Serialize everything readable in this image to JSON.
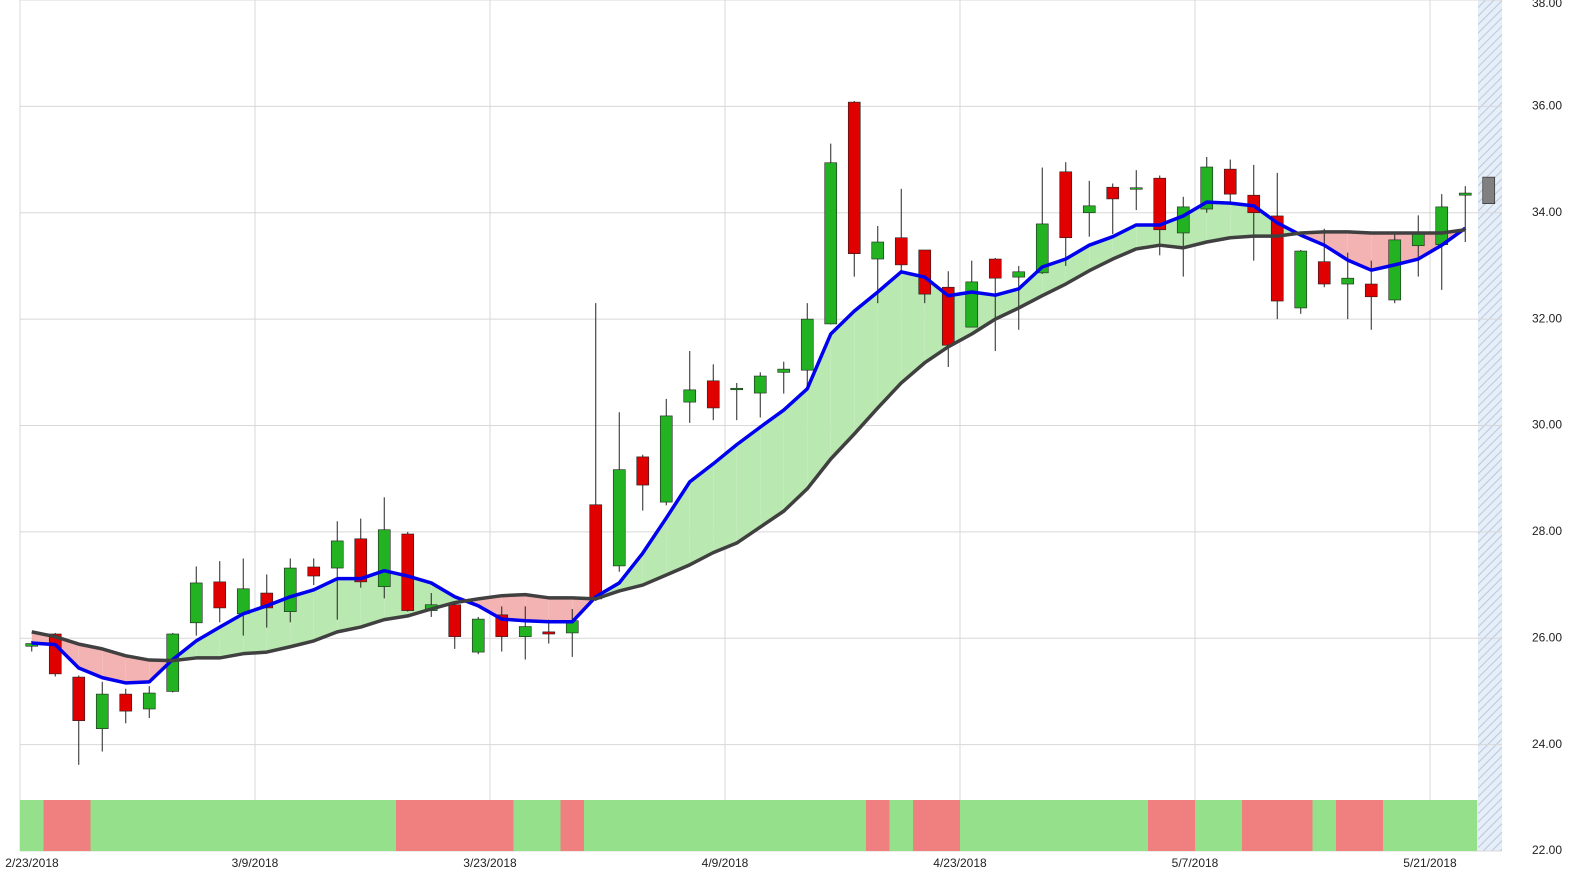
{
  "chart_data": {
    "type": "candlestick",
    "categories": [
      "2/23/2018",
      null,
      null,
      null,
      null,
      null,
      null,
      null,
      null,
      null,
      "3/9/2018",
      null,
      null,
      null,
      null,
      null,
      null,
      null,
      null,
      null,
      "3/23/2018",
      null,
      null,
      null,
      null,
      null,
      null,
      null,
      null,
      null,
      "4/9/2018",
      null,
      null,
      null,
      null,
      null,
      null,
      null,
      null,
      null,
      "4/23/2018",
      null,
      null,
      null,
      null,
      null,
      null,
      null,
      null,
      null,
      "5/7/2018",
      null,
      null,
      null,
      null,
      null,
      null,
      null,
      null,
      null,
      "5/21/2018",
      null,
      null
    ],
    "open": [
      25.85,
      26.08,
      25.27,
      24.3,
      24.95,
      24.67,
      25.0,
      26.29,
      27.06,
      26.46,
      26.85,
      26.5,
      27.34,
      27.32,
      27.87,
      26.97,
      27.96,
      26.52,
      26.63,
      25.74,
      26.44,
      26.03,
      26.12,
      26.1,
      28.51,
      27.36,
      29.41,
      28.56,
      30.44,
      30.84,
      30.68,
      30.61,
      31.0,
      31.04,
      31.91,
      36.08,
      33.13,
      33.53,
      33.3,
      32.6,
      31.85,
      33.13,
      32.79,
      32.87,
      34.77,
      34.0,
      34.48,
      34.47,
      34.65,
      33.62,
      34.07,
      34.82,
      34.33,
      33.94,
      32.21,
      33.08,
      32.66,
      32.66,
      32.36,
      33.38,
      33.4,
      34.33,
      34.17
    ],
    "high": [
      25.95,
      26.1,
      25.3,
      25.18,
      25.05,
      25.1,
      26.1,
      27.35,
      27.45,
      27.5,
      27.2,
      27.5,
      27.5,
      28.2,
      28.25,
      28.65,
      28.0,
      26.85,
      26.7,
      26.4,
      26.6,
      26.6,
      26.35,
      26.55,
      32.3,
      30.25,
      29.45,
      30.5,
      31.4,
      31.15,
      30.8,
      31.0,
      31.2,
      32.3,
      35.3,
      36.1,
      33.75,
      34.45,
      33.3,
      32.9,
      33.1,
      33.15,
      33.0,
      34.85,
      34.95,
      34.6,
      34.55,
      34.8,
      34.7,
      34.3,
      35.05,
      35.0,
      34.9,
      34.75,
      33.3,
      33.7,
      33.25,
      33.1,
      33.6,
      33.95,
      34.35,
      34.5,
      34.67
    ],
    "low": [
      25.75,
      25.28,
      23.62,
      23.87,
      24.4,
      24.5,
      24.98,
      26.05,
      26.3,
      26.05,
      26.2,
      26.3,
      27.0,
      26.35,
      26.95,
      26.75,
      26.5,
      26.4,
      25.8,
      25.7,
      25.75,
      25.6,
      25.9,
      25.65,
      26.7,
      27.25,
      28.4,
      28.5,
      30.05,
      30.1,
      30.1,
      30.15,
      30.6,
      30.7,
      31.9,
      32.8,
      32.3,
      32.85,
      32.3,
      31.1,
      31.85,
      31.4,
      31.8,
      32.85,
      33.0,
      33.55,
      33.6,
      34.05,
      33.2,
      32.8,
      34.0,
      34.2,
      33.1,
      32.0,
      32.1,
      32.6,
      32.0,
      31.8,
      32.3,
      32.8,
      32.55,
      33.45,
      34.17
    ],
    "close": [
      25.9,
      25.33,
      24.45,
      24.95,
      24.63,
      24.97,
      26.08,
      27.04,
      26.57,
      26.93,
      26.57,
      27.32,
      27.17,
      27.83,
      27.06,
      28.04,
      26.52,
      26.63,
      26.03,
      26.36,
      26.03,
      26.22,
      26.08,
      26.33,
      26.74,
      29.17,
      28.88,
      30.18,
      30.67,
      30.33,
      30.7,
      30.93,
      31.06,
      32.0,
      34.94,
      33.23,
      33.45,
      33.02,
      32.47,
      31.51,
      32.7,
      32.77,
      32.89,
      33.79,
      33.53,
      34.13,
      34.26,
      34.47,
      33.68,
      34.11,
      34.86,
      34.35,
      34.0,
      32.34,
      33.28,
      32.66,
      32.77,
      32.42,
      33.49,
      33.62,
      34.11,
      34.37,
      34.67
    ],
    "colors": {
      "up": "#22b222",
      "down": "#e00000",
      "pending": "#808080"
    },
    "series": [
      {
        "color": "#0000ee",
        "values": [
          25.91,
          25.88,
          25.44,
          25.26,
          25.16,
          25.18,
          25.6,
          25.95,
          26.21,
          26.46,
          26.61,
          26.78,
          26.91,
          27.12,
          27.12,
          27.27,
          27.17,
          27.04,
          26.78,
          26.61,
          26.36,
          26.33,
          26.31,
          26.31,
          26.78,
          27.04,
          27.6,
          28.26,
          28.94,
          29.28,
          29.64,
          29.97,
          30.29,
          30.69,
          31.72,
          32.15,
          32.51,
          32.89,
          32.79,
          32.44,
          32.51,
          32.45,
          32.57,
          32.98,
          33.13,
          33.39,
          33.55,
          33.77,
          33.77,
          33.94,
          34.2,
          34.18,
          34.13,
          33.81,
          33.58,
          33.39,
          33.11,
          32.92,
          33.02,
          33.13,
          33.39,
          33.71,
          null
        ]
      },
      {
        "color": "#404040",
        "values": [
          26.12,
          26.03,
          25.89,
          25.8,
          25.67,
          25.59,
          25.58,
          25.63,
          25.63,
          25.71,
          25.74,
          25.84,
          25.95,
          26.12,
          26.21,
          26.35,
          26.42,
          26.55,
          26.67,
          26.74,
          26.8,
          26.82,
          26.76,
          26.76,
          26.74,
          26.89,
          27.0,
          27.19,
          27.38,
          27.61,
          27.79,
          28.09,
          28.39,
          28.81,
          29.37,
          29.84,
          30.33,
          30.8,
          31.18,
          31.48,
          31.72,
          32.0,
          32.21,
          32.44,
          32.66,
          32.91,
          33.13,
          33.32,
          33.39,
          33.34,
          33.45,
          33.53,
          33.56,
          33.56,
          33.62,
          33.64,
          33.64,
          33.62,
          33.62,
          33.62,
          33.62,
          33.68,
          null
        ]
      }
    ],
    "fill_colors": {
      "above": "#b9e8b0",
      "below": "#f4b3b3"
    },
    "band_colors": [
      "#95e08a",
      "#f08080",
      "#f08080",
      "#95e08a",
      "#95e08a",
      "#95e08a",
      "#95e08a",
      "#95e08a",
      "#95e08a",
      "#95e08a",
      "#95e08a",
      "#95e08a",
      "#95e08a",
      "#95e08a",
      "#95e08a",
      "#95e08a",
      "#f08080",
      "#f08080",
      "#f08080",
      "#f08080",
      "#f08080",
      "#95e08a",
      "#95e08a",
      "#f08080",
      "#95e08a",
      "#95e08a",
      "#95e08a",
      "#95e08a",
      "#95e08a",
      "#95e08a",
      "#95e08a",
      "#95e08a",
      "#95e08a",
      "#95e08a",
      "#95e08a",
      "#95e08a",
      "#f08080",
      "#95e08a",
      "#f08080",
      "#f08080",
      "#95e08a",
      "#95e08a",
      "#95e08a",
      "#95e08a",
      "#95e08a",
      "#95e08a",
      "#95e08a",
      "#95e08a",
      "#f08080",
      "#f08080",
      "#95e08a",
      "#95e08a",
      "#f08080",
      "#f08080",
      "#f08080",
      "#95e08a",
      "#f08080",
      "#f08080",
      "#95e08a",
      "#95e08a",
      "#95e08a",
      "#95e08a",
      null
    ],
    "ylim": [
      22,
      38
    ],
    "yticks": [
      {
        "value": 22,
        "label": "22.00"
      },
      {
        "value": 24,
        "label": "24.00"
      },
      {
        "value": 26,
        "label": "26.00"
      },
      {
        "value": 28,
        "label": "28.00"
      },
      {
        "value": 30,
        "label": "30.00"
      },
      {
        "value": 32,
        "label": "32.00"
      },
      {
        "value": 34,
        "label": "34.00"
      },
      {
        "value": 36,
        "label": "36.00"
      },
      {
        "value": 38,
        "label": "38.00"
      }
    ],
    "grid": true
  }
}
